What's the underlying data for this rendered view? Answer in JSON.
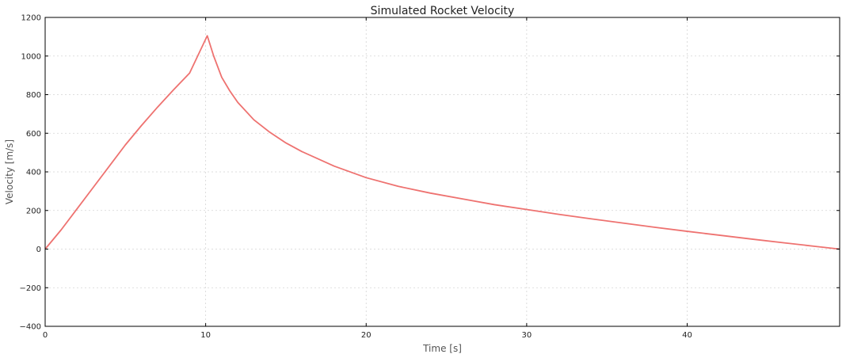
{
  "chart_data": {
    "type": "line",
    "title": "Simulated Rocket Velocity",
    "xlabel": "Time [s]",
    "ylabel": "Velocity [m/s]",
    "xlim": [
      0,
      49.5
    ],
    "ylim": [
      -400,
      1200
    ],
    "xticks": [
      0,
      10,
      20,
      30,
      40
    ],
    "xtick_labels": [
      "0",
      "10",
      "20",
      "30",
      "40"
    ],
    "yticks": [
      -400,
      -200,
      0,
      200,
      400,
      600,
      800,
      1000,
      1200
    ],
    "ytick_labels": [
      "−400",
      "−200",
      "0",
      "200",
      "400",
      "600",
      "800",
      "1000",
      "1200"
    ],
    "grid": true,
    "series": [
      {
        "color": "#ee7270",
        "x": [
          0,
          1,
          2,
          3,
          4,
          5,
          6,
          7,
          8,
          9,
          10.1,
          10.5,
          11,
          11.5,
          12,
          13,
          14,
          15,
          16,
          18,
          20,
          22,
          24,
          26,
          28,
          30,
          32,
          34,
          36,
          38,
          40,
          42,
          44,
          46,
          48,
          49.5
        ],
        "y": [
          0,
          100,
          210,
          320,
          430,
          540,
          640,
          735,
          825,
          912,
          1105,
          1000,
          890,
          820,
          760,
          670,
          605,
          550,
          505,
          430,
          370,
          325,
          290,
          260,
          230,
          205,
          180,
          157,
          135,
          113,
          92,
          72,
          52,
          33,
          14,
          0
        ]
      }
    ]
  }
}
